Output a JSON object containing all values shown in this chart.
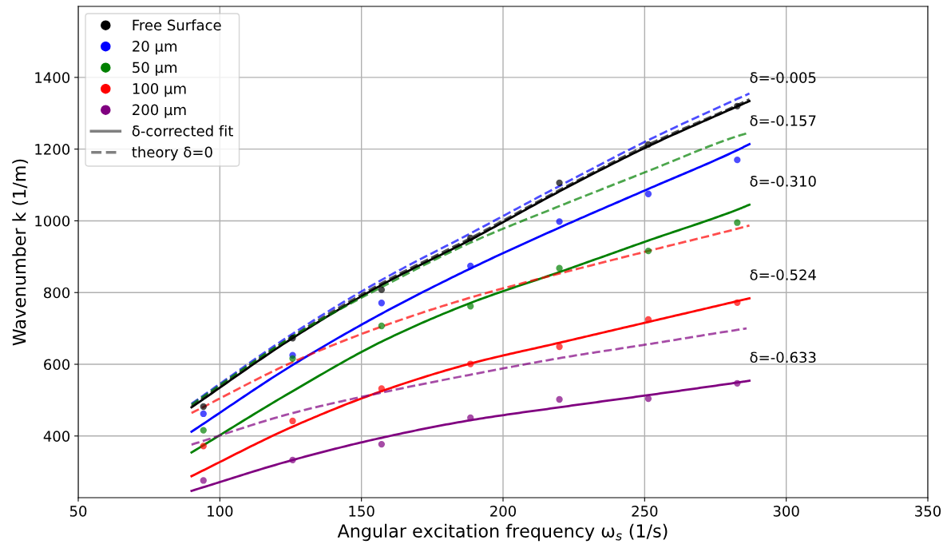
{
  "chart_data": {
    "type": "scatter",
    "xlabel": "Angular excitation frequency ω$_{s}$ (1/s)",
    "ylabel": "Wavenumber k (1/m)",
    "xlim": [
      50,
      350
    ],
    "xticks": [
      50,
      100,
      150,
      200,
      250,
      300,
      350
    ],
    "ylim": [
      228,
      1598
    ],
    "yticks": [
      400,
      600,
      800,
      1000,
      1200,
      1400
    ],
    "grid": true,
    "legend": "top left",
    "series": [
      {
        "name": "Free Surface",
        "marker": "circle",
        "color": "#000000",
        "x": [
          94.2,
          125.7,
          157.1,
          188.5,
          219.9,
          251.3,
          282.7
        ],
        "values": [
          482,
          673,
          808,
          952,
          1106,
          1213,
          1320
        ]
      },
      {
        "name": "20 µm",
        "marker": "circle",
        "color": "#0000ff",
        "x": [
          94.2,
          125.7,
          157.1,
          188.5,
          219.9,
          251.3,
          282.7
        ],
        "values": [
          462,
          625,
          771,
          874,
          998,
          1075,
          1170
        ]
      },
      {
        "name": "50 µm",
        "marker": "circle",
        "color": "#008000",
        "x": [
          94.2,
          125.7,
          157.1,
          188.5,
          219.9,
          251.3,
          282.7
        ],
        "values": [
          416,
          616,
          707,
          762,
          868,
          916,
          995
        ]
      },
      {
        "name": "100 µm",
        "marker": "circle",
        "color": "#ff0000",
        "x": [
          94.2,
          125.7,
          157.1,
          188.5,
          219.9,
          251.3,
          282.7
        ],
        "values": [
          372,
          442,
          532,
          601,
          649,
          725,
          772
        ]
      },
      {
        "name": "200 µm",
        "marker": "circle",
        "color": "#800080",
        "x": [
          94.2,
          125.7,
          157.1,
          188.5,
          219.9,
          251.3,
          282.7
        ],
        "values": [
          276,
          333,
          377,
          451,
          502,
          504,
          547
        ]
      },
      {
        "name": "δ-corrected fit",
        "type": "line",
        "line_style": "solid",
        "color": "#808080"
      },
      {
        "name": "theory δ=0",
        "type": "line",
        "line_style": "dashed",
        "color": "#808080"
      },
      {
        "type": "line",
        "line_style": "dashed",
        "color": "#0000ff",
        "x": [
          90,
          125.7,
          157.1,
          188.5,
          219.9,
          251.3,
          282.7,
          287
        ],
        "values": [
          490,
          685,
          835,
          965,
          1097,
          1225,
          1340,
          1355
        ]
      },
      {
        "type": "line",
        "line_style": "dashed",
        "color": "#000000",
        "x": [
          90,
          125.7,
          157.1,
          188.5,
          219.9,
          251.3,
          282.7,
          287
        ],
        "values": [
          484,
          678,
          826,
          952,
          1086,
          1213,
          1323,
          1339
        ]
      },
      {
        "type": "line",
        "line_style": "solid",
        "color": "#000000",
        "x": [
          90,
          125.7,
          157.1,
          188.5,
          219.9,
          251.3,
          282.7,
          287
        ],
        "values": [
          480,
          673,
          821,
          947,
          1082,
          1208,
          1319,
          1334
        ]
      },
      {
        "type": "line",
        "line_style": "dashed",
        "color": "#008000",
        "x": [
          90,
          125.7,
          157.1,
          188.5,
          219.9,
          251.3,
          282.7,
          287
        ],
        "values": [
          488,
          678,
          815,
          939,
          1041,
          1139,
          1236,
          1246
        ]
      },
      {
        "type": "line",
        "line_style": "solid",
        "color": "#0000ff",
        "x": [
          90,
          125.7,
          157.1,
          188.5,
          219.9,
          251.3,
          282.7,
          287
        ],
        "values": [
          412,
          598,
          741,
          867,
          981,
          1089,
          1197,
          1214
        ]
      },
      {
        "type": "line",
        "line_style": "solid",
        "color": "#008000",
        "x": [
          90,
          125.7,
          157.1,
          188.5,
          219.9,
          251.3,
          282.7,
          287
        ],
        "values": [
          354,
          525,
          663,
          771,
          857,
          945,
          1031,
          1045
        ]
      },
      {
        "type": "line",
        "line_style": "dashed",
        "color": "#ff0000",
        "x": [
          90,
          125.7,
          157.1,
          188.5,
          219.9,
          251.3,
          282.7,
          287
        ],
        "values": [
          464,
          606,
          705,
          786,
          853,
          916,
          978,
          987
        ]
      },
      {
        "type": "line",
        "line_style": "solid",
        "color": "#ff0000",
        "x": [
          90,
          125.7,
          157.1,
          188.5,
          219.9,
          251.3,
          282.7,
          287
        ],
        "values": [
          288,
          426,
          525,
          602,
          660,
          718,
          776,
          784
        ]
      },
      {
        "type": "line",
        "line_style": "dashed",
        "color": "#800080",
        "x": [
          90,
          125.7,
          157.1,
          188.5,
          219.9,
          251.3,
          282.7,
          286
        ],
        "values": [
          376,
          464,
          521,
          571,
          617,
          656,
          696,
          700
        ]
      },
      {
        "type": "line",
        "line_style": "solid",
        "color": "#800080",
        "x": [
          90,
          125.7,
          157.1,
          188.5,
          219.9,
          251.3,
          282.7,
          287
        ],
        "values": [
          247,
          333,
          395,
          444,
          480,
          514,
          549,
          554
        ]
      }
    ],
    "annotations": [
      "δ=-0.005",
      "δ=-0.157",
      "δ=-0.310",
      "δ=-0.524",
      "δ=-0.633"
    ]
  }
}
